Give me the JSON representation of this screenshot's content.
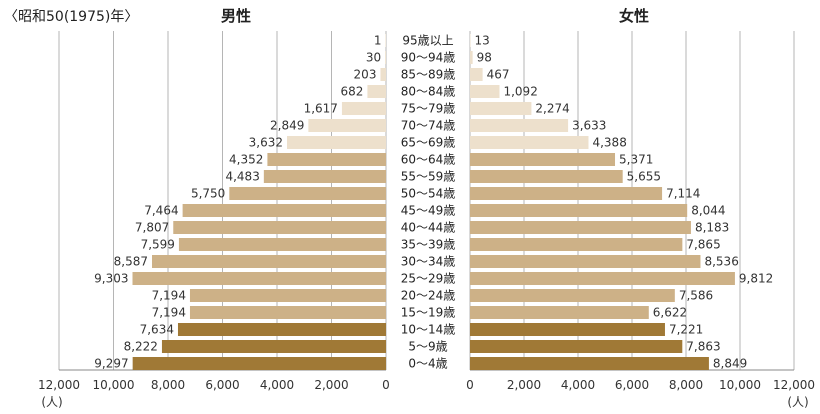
{
  "chart_data": {
    "type": "bar",
    "title": "〈昭和50(1975)年〉",
    "unit": "(人)",
    "xlim": [
      0,
      12000
    ],
    "x_ticks": [
      "12,000",
      "10,000",
      "8,000",
      "6,000",
      "4,000",
      "2,000",
      "0"
    ],
    "x_ticks_right": [
      "0",
      "2,000",
      "4,000",
      "6,000",
      "8,000",
      "10,000",
      "12,000"
    ],
    "categories": [
      "95歳以上",
      "90～94歳",
      "85～89歳",
      "80～84歳",
      "75～79歳",
      "70～74歳",
      "65～69歳",
      "60～64歳",
      "55～59歳",
      "50～54歳",
      "45～49歳",
      "40～44歳",
      "35～39歳",
      "30～34歳",
      "25～29歳",
      "20～24歳",
      "15～19歳",
      "10～14歳",
      "5～9歳",
      "0～4歳"
    ],
    "series": [
      {
        "name": "男性",
        "values": [
          1,
          30,
          203,
          682,
          1617,
          2849,
          3632,
          4352,
          4483,
          5750,
          7464,
          7807,
          7599,
          8587,
          9303,
          7194,
          7194,
          7634,
          8222,
          9297
        ],
        "labels": [
          "1",
          "30",
          "203",
          "682",
          "1,617",
          "2,849",
          "3,632",
          "4,352",
          "4,483",
          "5,750",
          "7,464",
          "7,807",
          "7,599",
          "8,587",
          "9,303",
          "7,194",
          "7,194",
          "7,634",
          "8,222",
          "9,297"
        ]
      },
      {
        "name": "女性",
        "values": [
          13,
          98,
          467,
          1092,
          2274,
          3633,
          4388,
          5371,
          5655,
          7114,
          8044,
          8183,
          7865,
          8536,
          9812,
          7586,
          6622,
          7221,
          7863,
          8849
        ],
        "labels": [
          "13",
          "98",
          "467",
          "1,092",
          "2,274",
          "3,633",
          "4,388",
          "5,371",
          "5,655",
          "7,114",
          "8,044",
          "8,183",
          "7,865",
          "8,536",
          "9,812",
          "7,586",
          "6,622",
          "7,221",
          "7,863",
          "8,849"
        ]
      }
    ],
    "age_group_colors": {
      "elderly": "#ede0cc",
      "working": "#cdb187",
      "youth": "#a07936"
    },
    "grid": true
  }
}
